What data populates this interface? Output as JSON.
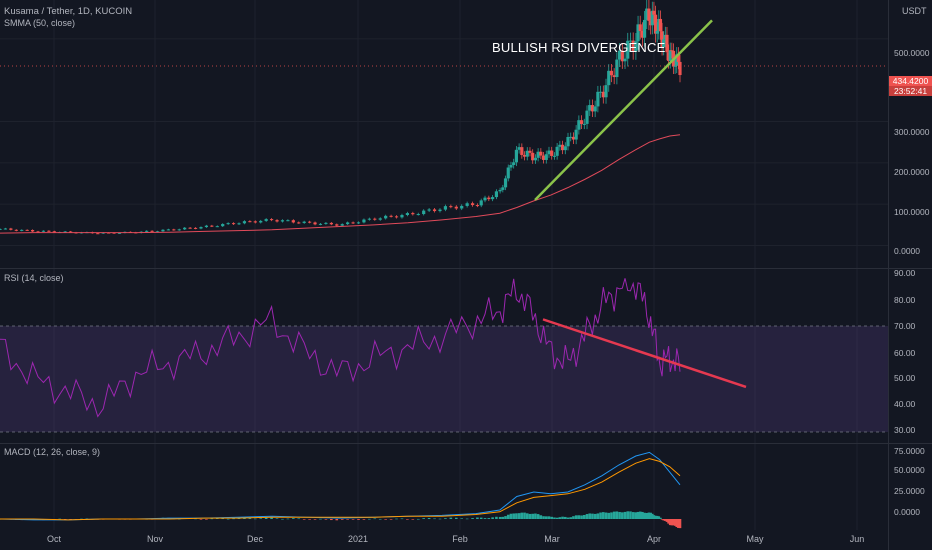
{
  "header": {
    "symbol": "Kusama / Tether, 1D, KUCOIN",
    "indicator": "SMMA (50, close)",
    "currency": "USDT"
  },
  "annotation": "BULLISH RSI DIVERGENCE",
  "price_tag": {
    "price": "434.4200",
    "countdown": "23:52:41"
  },
  "price_axis": {
    "ticks": [
      "500.0000",
      "300.0000",
      "200.0000",
      "100.0000",
      "0.0000"
    ]
  },
  "rsi_pane": {
    "label": "RSI (14, close)",
    "ticks": [
      "90.00",
      "80.00",
      "70.00",
      "60.00",
      "50.00",
      "40.00",
      "30.00"
    ]
  },
  "macd_pane": {
    "label": "MACD (12, 26, close, 9)",
    "ticks": [
      "75.0000",
      "50.0000",
      "25.0000",
      "0.0000"
    ]
  },
  "dates": [
    "Oct",
    "Nov",
    "Dec",
    "2021",
    "Feb",
    "Mar",
    "Apr",
    "May",
    "Jun"
  ],
  "colors": {
    "up": "#26a69a",
    "down": "#ef5350",
    "smma": "#e04a5a",
    "rsi": "#9c27b0",
    "macd": "#2196f3",
    "signal": "#ff9800",
    "trend_up": "#8bc34a",
    "trend_down": "#e53950"
  },
  "chart_data": [
    {
      "type": "candlestick",
      "title": "Kusama / Tether, 1D, KUCOIN",
      "x": [
        "2020-09-19",
        "2020-09-29",
        "2020-10-09",
        "2020-10-19",
        "2020-10-29",
        "2020-11-08",
        "2020-11-18",
        "2020-11-28",
        "2020-12-08",
        "2020-12-18",
        "2020-12-28",
        "2021-01-07",
        "2021-01-17",
        "2021-01-27",
        "2021-02-06",
        "2021-02-13",
        "2021-02-18",
        "2021-02-23",
        "2021-02-28",
        "2021-03-05",
        "2021-03-10",
        "2021-03-15",
        "2021-03-20",
        "2021-03-25",
        "2021-03-29",
        "2021-04-01",
        "2021-04-04",
        "2021-04-07"
      ],
      "close": [
        40,
        35,
        32,
        30,
        32,
        38,
        45,
        55,
        62,
        55,
        50,
        65,
        75,
        90,
        100,
        130,
        230,
        215,
        220,
        250,
        310,
        370,
        450,
        500,
        560,
        520,
        460,
        434
      ],
      "series": [
        {
          "name": "SMMA (50, close)",
          "values": [
            30,
            31,
            31,
            31,
            31,
            32,
            34,
            36,
            38,
            42,
            46,
            50,
            55,
            62,
            70,
            78,
            92,
            108,
            122,
            140,
            160,
            182,
            208,
            232,
            250,
            258,
            265,
            268
          ]
        }
      ],
      "ylim": [
        -40,
        570
      ]
    },
    {
      "type": "line",
      "title": "RSI (14, close)",
      "series": [
        {
          "name": "RSI (14, close)",
          "values": [
            62,
            50,
            45,
            40,
            52,
            56,
            60,
            66,
            72,
            60,
            52,
            58,
            62,
            66,
            72,
            76,
            84,
            74,
            60,
            56,
            66,
            78,
            84,
            86,
            74,
            56,
            58,
            55
          ]
        }
      ],
      "levels": [
        70,
        30
      ],
      "ylim": [
        30,
        90
      ]
    },
    {
      "type": "line",
      "title": "MACD (12, 26, close, 9)",
      "series": [
        {
          "name": "MACD",
          "values": [
            0,
            -1,
            -1,
            0,
            0,
            1,
            1,
            2,
            3,
            2,
            1,
            2,
            3,
            4,
            6,
            10,
            25,
            30,
            28,
            30,
            38,
            48,
            60,
            70,
            74,
            66,
            52,
            38
          ]
        },
        {
          "name": "Signal",
          "values": [
            0,
            0,
            -1,
            0,
            0,
            0,
            1,
            1,
            2,
            2,
            2,
            2,
            3,
            3,
            5,
            8,
            18,
            24,
            26,
            28,
            33,
            41,
            52,
            62,
            67,
            64,
            58,
            48
          ]
        }
      ],
      "ylim": [
        -10,
        80
      ]
    }
  ]
}
